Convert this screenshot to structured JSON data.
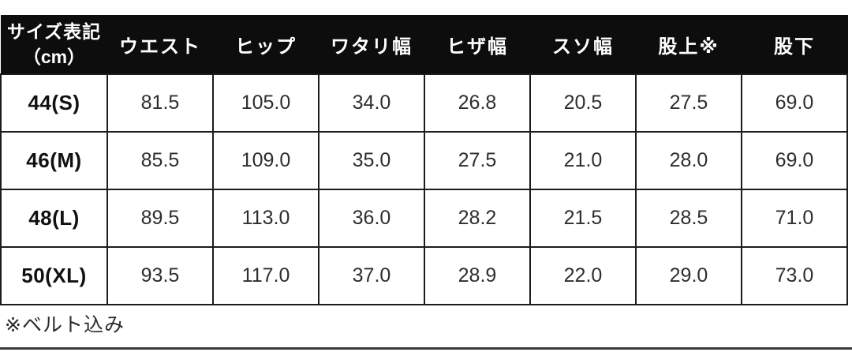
{
  "table": {
    "header": {
      "size_label": "サイズ表記",
      "size_unit": "（cm）",
      "columns": [
        "ウエスト",
        "ヒップ",
        "ワタリ幅",
        "ヒザ幅",
        "スソ幅",
        "股上※",
        "股下"
      ]
    },
    "rows": [
      {
        "size": "44(S)",
        "values": [
          "81.5",
          "105.0",
          "34.0",
          "26.8",
          "20.5",
          "27.5",
          "69.0"
        ]
      },
      {
        "size": "46(M)",
        "values": [
          "85.5",
          "109.0",
          "35.0",
          "27.5",
          "21.0",
          "28.0",
          "69.0"
        ]
      },
      {
        "size": "48(L)",
        "values": [
          "89.5",
          "113.0",
          "36.0",
          "28.2",
          "21.5",
          "28.5",
          "71.0"
        ]
      },
      {
        "size": "50(XL)",
        "values": [
          "93.5",
          "117.0",
          "37.0",
          "28.9",
          "22.0",
          "29.0",
          "73.0"
        ]
      }
    ]
  },
  "note": "※ベルト込み",
  "colors": {
    "header_bg": "#0d0d0d",
    "header_text": "#ffffff",
    "border": "#1c1c1c",
    "body_text": "#2e2e2e",
    "bottom_rule": "#3a3a3a",
    "background": "#ffffff"
  },
  "chart_data": {
    "type": "table",
    "title": "サイズ表記（cm）",
    "columns": [
      "サイズ表記（cm）",
      "ウエスト",
      "ヒップ",
      "ワタリ幅",
      "ヒザ幅",
      "スソ幅",
      "股上※",
      "股下"
    ],
    "rows": [
      [
        "44(S)",
        81.5,
        105.0,
        34.0,
        26.8,
        20.5,
        27.5,
        69.0
      ],
      [
        "46(M)",
        85.5,
        109.0,
        35.0,
        27.5,
        21.0,
        28.0,
        69.0
      ],
      [
        "48(L)",
        89.5,
        113.0,
        36.0,
        28.2,
        21.5,
        28.5,
        71.0
      ],
      [
        "50(XL)",
        93.5,
        117.0,
        37.0,
        28.9,
        22.0,
        29.0,
        73.0
      ]
    ],
    "note": "※ベルト込み",
    "unit": "cm"
  }
}
